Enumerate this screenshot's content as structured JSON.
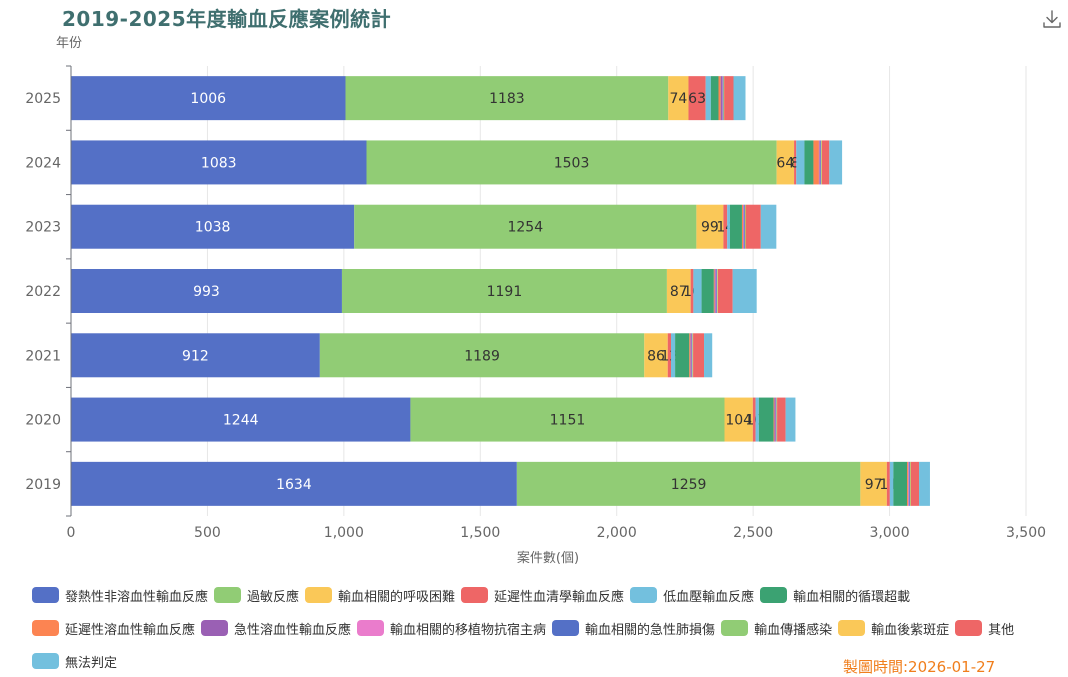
{
  "title": "2019-2025年度輸血反應案例統計",
  "icons": {
    "download": "download-icon"
  },
  "footer": {
    "date_text": "製圖時間:2026-01-27"
  },
  "chart_data": {
    "type": "bar",
    "orientation": "horizontal",
    "stacked": true,
    "title": "2019-2025年度輸血反應案例統計",
    "xlabel": "案件數(個)",
    "ylabel": "年份",
    "xlim": [
      0,
      3500
    ],
    "xticks": [
      0,
      500,
      1000,
      1500,
      2000,
      2500,
      3000,
      3500
    ],
    "xtick_labels": [
      "0",
      "500",
      "1,000",
      "1,500",
      "2,000",
      "2,500",
      "3,000",
      "3,500"
    ],
    "categories": [
      "2025",
      "2024",
      "2023",
      "2022",
      "2021",
      "2020",
      "2019"
    ],
    "grid": true,
    "legend_position": "bottom",
    "series": [
      {
        "name": "發熱性非溶血性輸血反應",
        "color": "#5470c6",
        "label_color": "#ffffff",
        "show_labels": true,
        "values": [
          1006,
          1083,
          1038,
          993,
          912,
          1244,
          1634
        ]
      },
      {
        "name": "過敏反應",
        "color": "#91cc75",
        "label_color": "#333333",
        "show_labels": true,
        "values": [
          1183,
          1503,
          1254,
          1191,
          1189,
          1151,
          1259
        ]
      },
      {
        "name": "輸血相關的呼吸困難",
        "color": "#fac858",
        "label_color": "#333333",
        "show_labels": true,
        "values": [
          74,
          64,
          99,
          87,
          86,
          104,
          97
        ]
      },
      {
        "name": "延遲性血清學輸血反應",
        "color": "#ee6666",
        "label_color": "#333333",
        "show_labels": true,
        "values": [
          63,
          8,
          14,
          10,
          12,
          10,
          11
        ]
      },
      {
        "name": "低血壓輸血反應",
        "color": "#73c0de",
        "label_color": "#333333",
        "show_labels": false,
        "values": [
          19,
          30,
          10,
          30,
          15,
          12,
          13
        ]
      },
      {
        "name": "輸血相關的循環超載",
        "color": "#3ba272",
        "label_color": "#333333",
        "show_labels": false,
        "values": [
          28,
          33,
          44,
          45,
          52,
          54,
          50
        ]
      },
      {
        "name": "延遲性溶血性輸血反應",
        "color": "#fc8452",
        "label_color": "#333333",
        "show_labels": false,
        "values": [
          8,
          20,
          4,
          3,
          4,
          3,
          4
        ]
      },
      {
        "name": "急性溶血性輸血反應",
        "color": "#9a60b4",
        "label_color": "#333333",
        "show_labels": false,
        "values": [
          5,
          3,
          2,
          4,
          2,
          2,
          2
        ]
      },
      {
        "name": "輸血相關的移植物抗宿主病",
        "color": "#ea7ccc",
        "label_color": "#333333",
        "show_labels": false,
        "values": [
          2,
          2,
          2,
          2,
          2,
          2,
          2
        ]
      },
      {
        "name": "輸血相關的急性肺損傷",
        "color": "#5470c6",
        "label_color": "#ffffff",
        "show_labels": false,
        "values": [
          3,
          3,
          3,
          3,
          3,
          3,
          3
        ]
      },
      {
        "name": "輸血傳播感染",
        "color": "#91cc75",
        "label_color": "#333333",
        "show_labels": false,
        "values": [
          2,
          2,
          2,
          2,
          2,
          2,
          2
        ]
      },
      {
        "name": "輸血後紫斑症",
        "color": "#fac858",
        "label_color": "#333333",
        "show_labels": false,
        "values": [
          1,
          1,
          1,
          1,
          1,
          1,
          1
        ]
      },
      {
        "name": "其他",
        "color": "#ee6666",
        "label_color": "#333333",
        "show_labels": false,
        "values": [
          34,
          27,
          55,
          54,
          40,
          31,
          30
        ]
      },
      {
        "name": "無法判定",
        "color": "#73c0de",
        "label_color": "#333333",
        "show_labels": false,
        "values": [
          44,
          47,
          57,
          88,
          30,
          36,
          40
        ]
      }
    ]
  }
}
